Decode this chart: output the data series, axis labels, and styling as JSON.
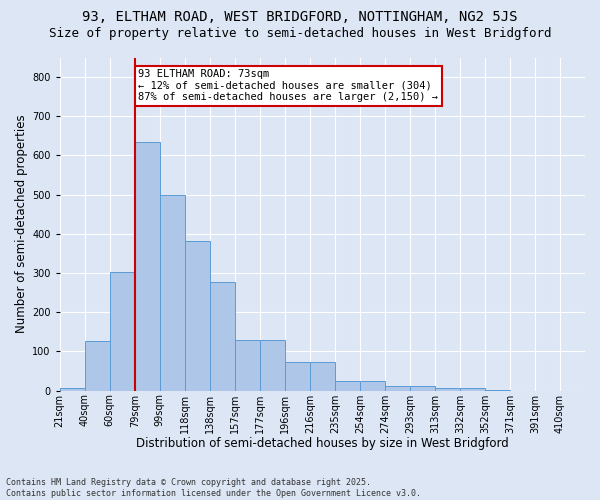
{
  "title1": "93, ELTHAM ROAD, WEST BRIDGFORD, NOTTINGHAM, NG2 5JS",
  "title2": "Size of property relative to semi-detached houses in West Bridgford",
  "xlabel": "Distribution of semi-detached houses by size in West Bridgford",
  "ylabel": "Number of semi-detached properties",
  "footnote": "Contains HM Land Registry data © Crown copyright and database right 2025.\nContains public sector information licensed under the Open Government Licence v3.0.",
  "bin_labels": [
    "21sqm",
    "40sqm",
    "60sqm",
    "79sqm",
    "99sqm",
    "118sqm",
    "138sqm",
    "157sqm",
    "177sqm",
    "196sqm",
    "216sqm",
    "235sqm",
    "254sqm",
    "274sqm",
    "293sqm",
    "313sqm",
    "332sqm",
    "352sqm",
    "371sqm",
    "391sqm",
    "410sqm"
  ],
  "bar_heights": [
    8,
    128,
    303,
    635,
    500,
    383,
    278,
    130,
    130,
    72,
    72,
    25,
    25,
    12,
    12,
    7,
    7,
    2,
    0,
    0,
    0
  ],
  "bar_color": "#aec6e8",
  "bar_edge_color": "#5b9bd5",
  "vline_index": 3,
  "vline_color": "#cc0000",
  "annotation_text": "93 ELTHAM ROAD: 73sqm\n← 12% of semi-detached houses are smaller (304)\n87% of semi-detached houses are larger (2,150) →",
  "annotation_box_facecolor": "#ffffff",
  "annotation_box_edgecolor": "#cc0000",
  "ylim": [
    0,
    850
  ],
  "yticks": [
    0,
    100,
    200,
    300,
    400,
    500,
    600,
    700,
    800
  ],
  "background_color": "#dce6f5",
  "plot_bg_color": "#dce6f5",
  "grid_color": "#ffffff",
  "title1_fontsize": 10,
  "title2_fontsize": 9,
  "xlabel_fontsize": 8.5,
  "ylabel_fontsize": 8.5,
  "tick_fontsize": 7,
  "annot_fontsize": 7.5,
  "footnote_fontsize": 6
}
